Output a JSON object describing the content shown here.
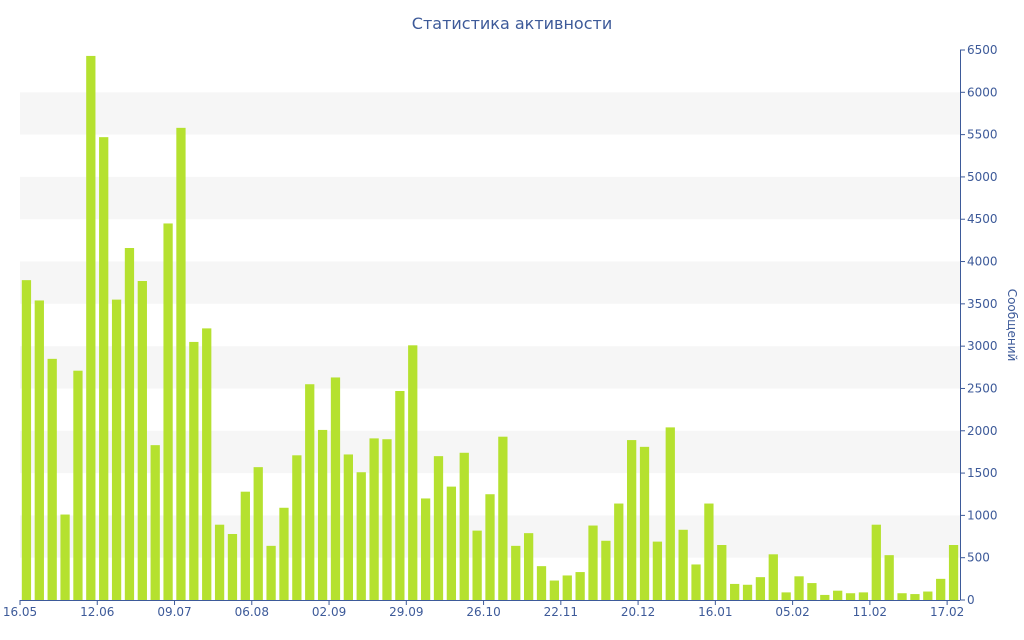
{
  "chart_data": {
    "type": "bar",
    "title": "Статистика активности",
    "ylabel": "Сообщений",
    "xlabel": "",
    "ylim": [
      0,
      6500
    ],
    "y_ticks": [
      0,
      500,
      1000,
      1500,
      2000,
      2500,
      3000,
      3500,
      4000,
      4500,
      5000,
      5500,
      6000,
      6500
    ],
    "y_axis_position": "right",
    "grid": "alternating horizontal bands",
    "x_tick_labels": [
      {
        "index": 0,
        "label": "16.05"
      },
      {
        "index": 6,
        "label": "12.06"
      },
      {
        "index": 12,
        "label": "09.07"
      },
      {
        "index": 18,
        "label": "06.08"
      },
      {
        "index": 24,
        "label": "02.09"
      },
      {
        "index": 30,
        "label": "29.09"
      },
      {
        "index": 36,
        "label": "26.10"
      },
      {
        "index": 42,
        "label": "22.11"
      },
      {
        "index": 48,
        "label": "20.12"
      },
      {
        "index": 54,
        "label": "16.01"
      },
      {
        "index": 60,
        "label": "05.02"
      },
      {
        "index": 66,
        "label": "11.02"
      },
      {
        "index": 72,
        "label": "17.02"
      }
    ],
    "bar_color": "#b5e12f",
    "values": [
      3780,
      3540,
      2850,
      1010,
      2710,
      6430,
      5470,
      3550,
      4160,
      3770,
      1830,
      4450,
      5580,
      3050,
      3210,
      890,
      780,
      1280,
      1570,
      640,
      1090,
      1710,
      2550,
      2010,
      2630,
      1720,
      1510,
      1910,
      1900,
      2470,
      3010,
      1200,
      1700,
      1340,
      1740,
      820,
      1250,
      1930,
      640,
      790,
      400,
      230,
      290,
      330,
      880,
      700,
      1140,
      1890,
      1810,
      690,
      2040,
      830,
      420,
      1140,
      650,
      190,
      180,
      270,
      540,
      90,
      280,
      200,
      60,
      110,
      80,
      90,
      890,
      530,
      80,
      70,
      100,
      250,
      650
    ]
  }
}
